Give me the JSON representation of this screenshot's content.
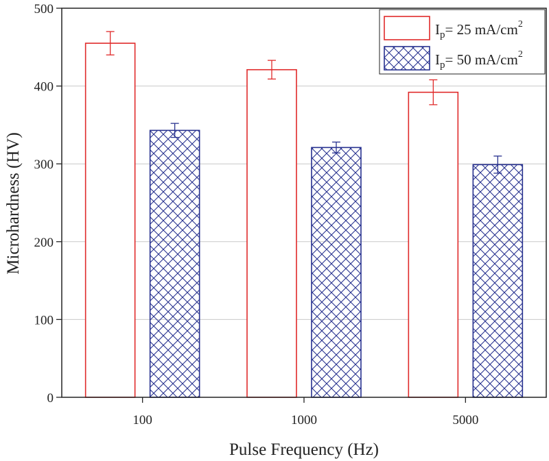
{
  "chart_data": {
    "type": "bar",
    "title": "",
    "xlabel": "Pulse Frequency (Hz)",
    "ylabel": "Microhardness (HV)",
    "categories": [
      "100",
      "1000",
      "5000"
    ],
    "ylim": [
      0,
      500
    ],
    "yticks": [
      0,
      100,
      200,
      300,
      400,
      500
    ],
    "grid": true,
    "legend_position": "top-right",
    "series": [
      {
        "name": "Ip= 25 mA/cm2",
        "legend": {
          "main": "I",
          "sub": "p",
          "rest": "= 25 mA/cm",
          "sup": "2"
        },
        "values": [
          455,
          421,
          392
        ],
        "errors": [
          15,
          12,
          16
        ],
        "style": "hollow",
        "color": "#e02a2a"
      },
      {
        "name": "Ip= 50 mA/cm2",
        "legend": {
          "main": "I",
          "sub": "p",
          "rest": "= 50 mA/cm",
          "sup": "2"
        },
        "values": [
          343,
          321,
          299
        ],
        "errors": [
          9,
          7,
          11
        ],
        "style": "crosshatch",
        "color": "#27318f"
      }
    ]
  }
}
